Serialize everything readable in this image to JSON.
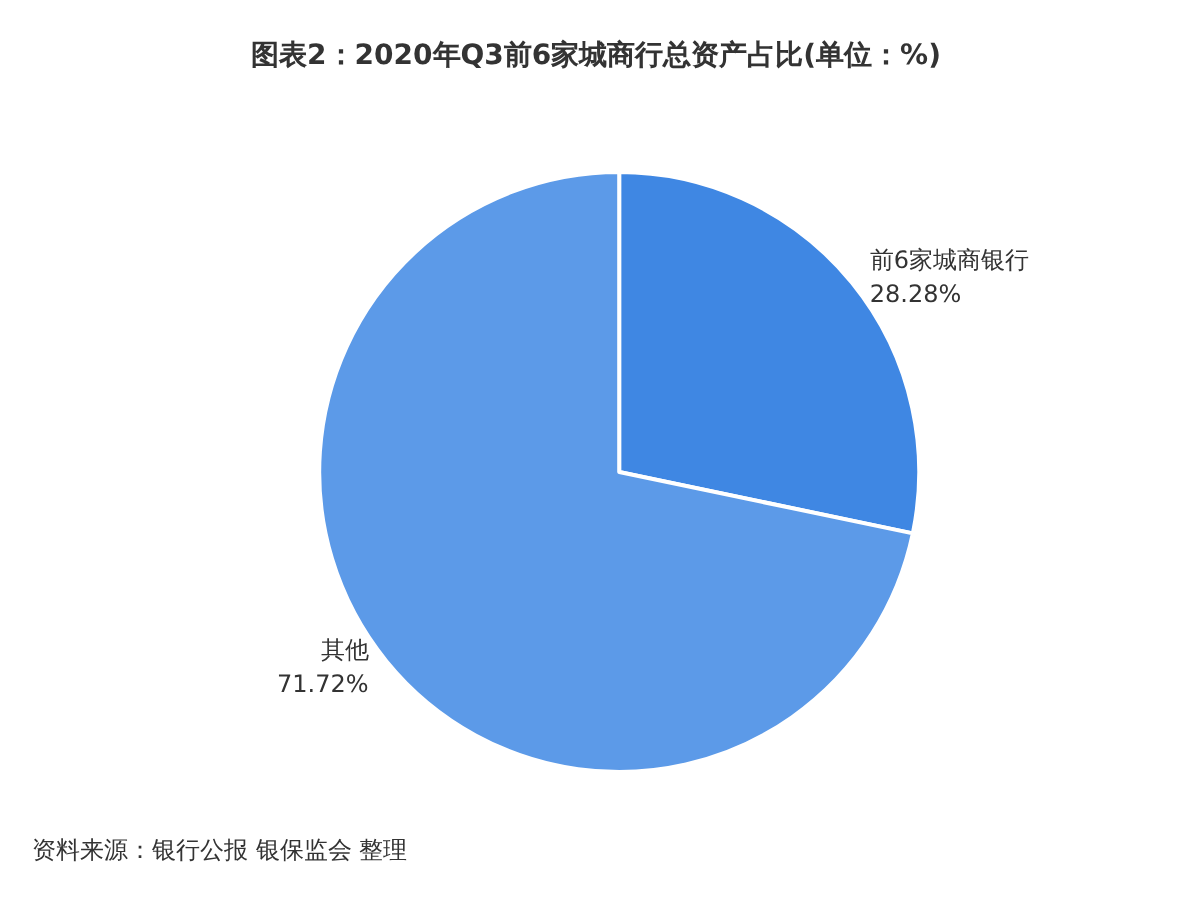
{
  "chart_data": {
    "type": "pie",
    "title": "图表2：2020年Q3前6家城商行总资产占比(单位：%)",
    "categories": [
      "前6家城商银行",
      "其他"
    ],
    "values": [
      28.28,
      71.72
    ],
    "value_labels": [
      "28.28%",
      "71.72%"
    ],
    "colors": [
      "#3f87e3",
      "#5c9ae8"
    ],
    "legend": false,
    "annotations": [
      "资料来源：银行公报 银保监会 整理"
    ]
  }
}
